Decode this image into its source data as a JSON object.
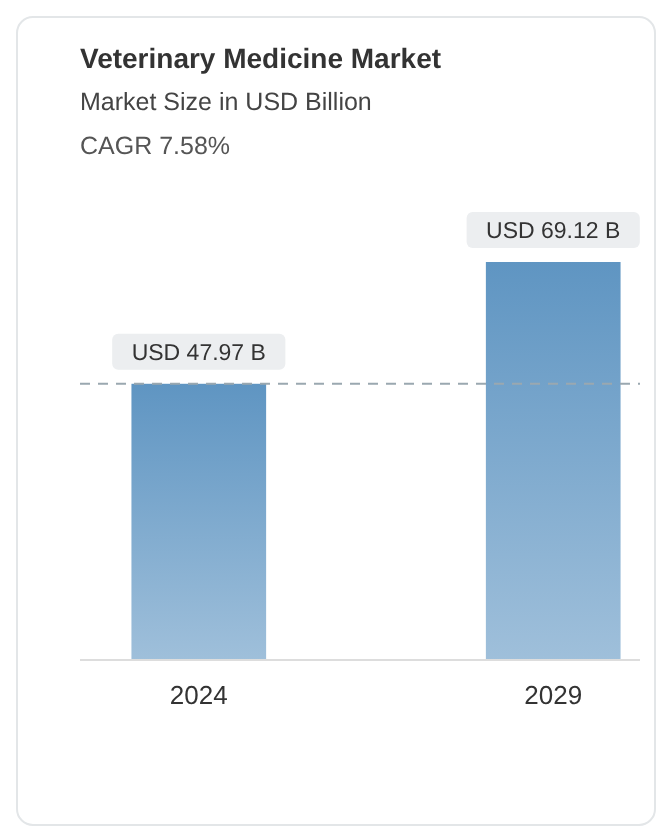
{
  "chart_data": {
    "type": "bar",
    "title": "Veterinary Medicine Market",
    "subtitle": "Market Size in USD Billion",
    "annotations": [
      "CAGR 7.58%"
    ],
    "categories": [
      "2024",
      "2029"
    ],
    "values": [
      47.97,
      69.12
    ],
    "value_labels": [
      "USD 47.97 B",
      "USD 69.12 B"
    ],
    "color": "#5f95c2",
    "ref_lines": [
      {
        "axis": "y",
        "value": 47.97,
        "line_style": "dashed",
        "color": "#9aa8b0"
      }
    ]
  }
}
